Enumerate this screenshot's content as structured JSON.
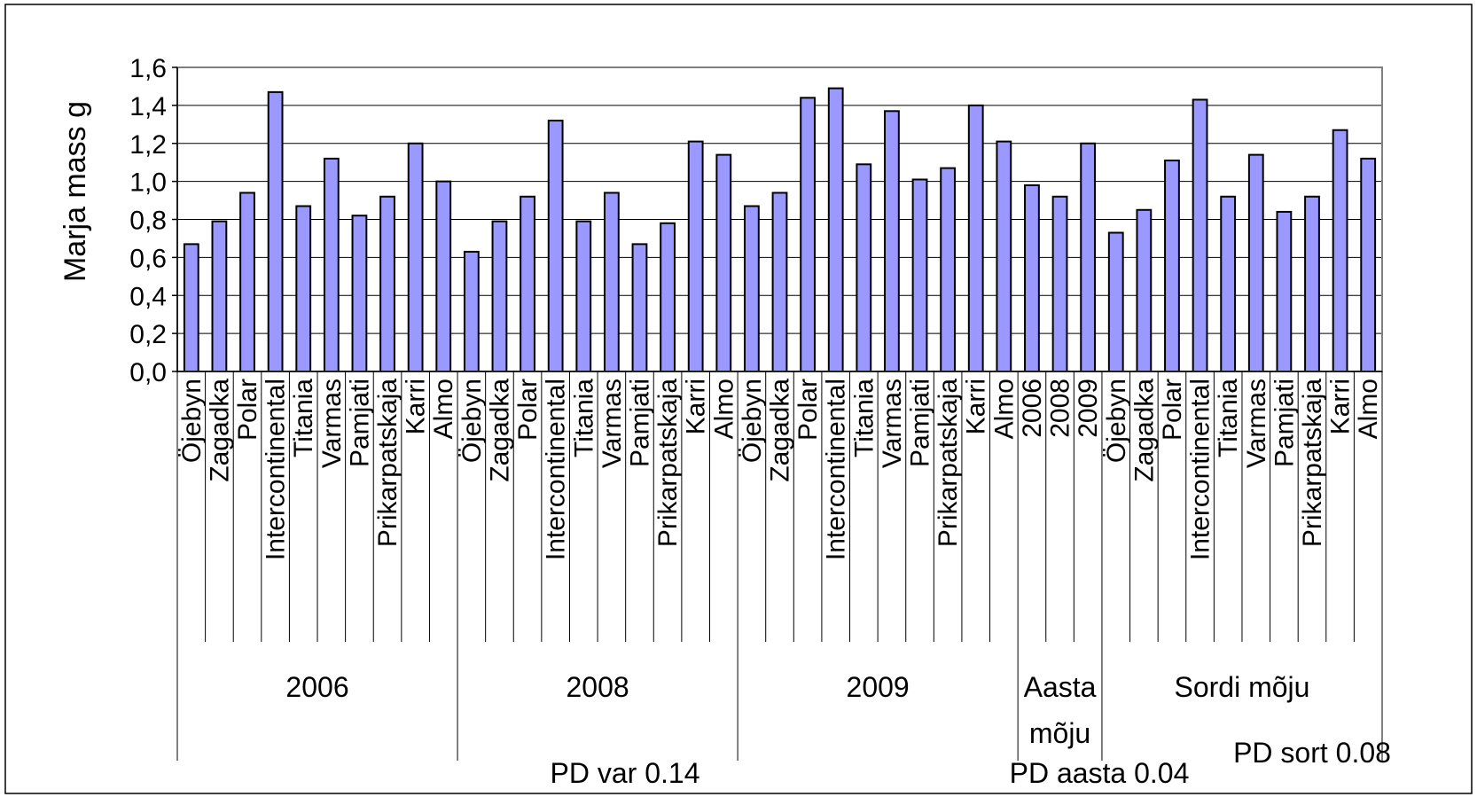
{
  "chart_data": {
    "type": "bar",
    "ylabel": "Marja mass g",
    "ylim": [
      0,
      1.6
    ],
    "y_ticks": [
      "0,0",
      "0,2",
      "0,4",
      "0,6",
      "0,8",
      "1,0",
      "1,2",
      "1,4",
      "1,6"
    ],
    "grid": true,
    "colors": {
      "bar_fill": "#9999ff",
      "bar_stroke": "#000000",
      "plot_border": "#808080"
    },
    "categories": [
      "Öjebyn",
      "Zagadka",
      "Polar",
      "Intercontinental",
      "Titania",
      "Varmas",
      "Pamjati",
      "Prikarpatskaja",
      "Karri",
      "Almo",
      "Öjebyn",
      "Zagadka",
      "Polar",
      "Intercontinental",
      "Titania",
      "Varmas",
      "Pamjati",
      "Prikarpatskaja",
      "Karri",
      "Almo",
      "Öjebyn",
      "Zagadka",
      "Polar",
      "Intercontinental",
      "Titania",
      "Varmas",
      "Pamjati",
      "Prikarpatskaja",
      "Karri",
      "Almo",
      "2006",
      "2008",
      "2009",
      "Öjebyn",
      "Zagadka",
      "Polar",
      "Intercontinental",
      "Titania",
      "Varmas",
      "Pamjati",
      "Prikarpatskaja",
      "Karri",
      "Almo"
    ],
    "values": [
      0.67,
      0.79,
      0.94,
      1.47,
      0.87,
      1.12,
      0.82,
      0.92,
      1.2,
      1.0,
      0.63,
      0.79,
      0.92,
      1.32,
      0.79,
      0.94,
      0.67,
      0.78,
      1.21,
      1.14,
      0.87,
      0.94,
      1.44,
      1.49,
      1.09,
      1.37,
      1.01,
      1.07,
      1.4,
      1.21,
      0.98,
      0.92,
      1.2,
      0.73,
      0.85,
      1.11,
      1.43,
      0.92,
      1.14,
      0.84,
      0.92,
      1.27,
      1.12
    ],
    "groups": [
      {
        "label": "2006",
        "start": 0,
        "count": 10
      },
      {
        "label": "2008",
        "start": 10,
        "count": 10
      },
      {
        "label": "2009",
        "start": 20,
        "count": 10
      },
      {
        "label": "Aasta\nmõju",
        "start": 30,
        "count": 3
      },
      {
        "label": "Sordi mõju",
        "start": 33,
        "count": 10
      }
    ],
    "annotations": [
      "PD var 0.14",
      "PD aasta 0.04",
      "PD sort 0.08"
    ]
  }
}
